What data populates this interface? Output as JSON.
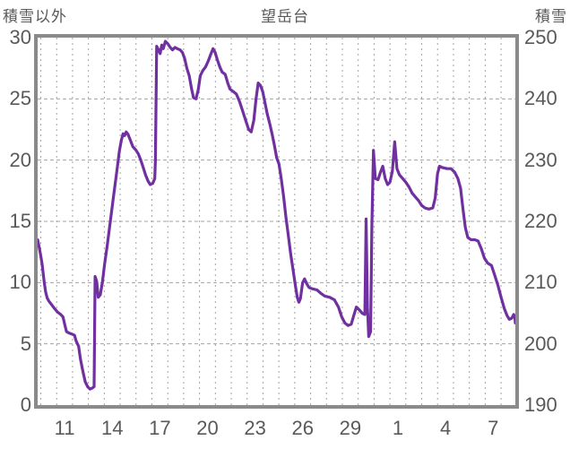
{
  "header": {
    "left_axis_caption": "積雪以外",
    "title": "望岳台",
    "right_axis_caption": "積雪"
  },
  "colors": {
    "line": "#7030a0",
    "border": "#8a8a8a",
    "grid": "#a3a3a3",
    "text": "#595959",
    "background": "#ffffff"
  },
  "chart_data": {
    "type": "line",
    "title": "望岳台",
    "left_axis": {
      "label": "積雪以外",
      "min": 0,
      "max": 30,
      "tick_labels": [
        "30",
        "25",
        "20",
        "15",
        "10",
        "5",
        "0"
      ],
      "tick_values": [
        30,
        25,
        20,
        15,
        10,
        5,
        0
      ]
    },
    "right_axis": {
      "label": "積雪",
      "min": 190,
      "max": 250,
      "tick_labels": [
        "250",
        "240",
        "230",
        "220",
        "210",
        "200",
        "190"
      ],
      "tick_values": [
        250,
        240,
        230,
        220,
        210,
        200,
        190
      ]
    },
    "x_axis": {
      "tick_labels": [
        "11",
        "14",
        "17",
        "20",
        "23",
        "26",
        "29",
        "1",
        "4",
        "7"
      ],
      "tick_day_index": [
        2.5,
        5.5,
        8.5,
        11.5,
        14.5,
        17.5,
        20.5,
        23.5,
        26.5,
        29.5
      ],
      "domain_day_index": [
        0.8,
        30.9
      ],
      "day_boundary_gridlines": [
        1,
        2,
        3,
        4,
        5,
        6,
        7,
        8,
        9,
        10,
        11,
        12,
        13,
        14,
        15,
        16,
        17,
        18,
        19,
        20,
        21,
        22,
        23,
        24,
        25,
        26,
        27,
        28,
        29,
        30
      ]
    },
    "grid": {
      "h_gridline_left_values": [
        25,
        20,
        15,
        10,
        5
      ],
      "dashed": true
    },
    "legend": "none",
    "series": [
      {
        "name": "積雪",
        "axis": "right",
        "unit": "cm",
        "color": "#7030a0",
        "points": [
          [
            0.8,
            217
          ],
          [
            0.88,
            216
          ],
          [
            0.95,
            215
          ],
          [
            1.02,
            214
          ],
          [
            1.08,
            213
          ],
          [
            1.15,
            211.5
          ],
          [
            1.22,
            210
          ],
          [
            1.3,
            208.5
          ],
          [
            1.4,
            207.5
          ],
          [
            1.5,
            207
          ],
          [
            1.65,
            206.5
          ],
          [
            1.85,
            205.8
          ],
          [
            2.05,
            205.2
          ],
          [
            2.25,
            204.8
          ],
          [
            2.4,
            204.4
          ],
          [
            2.52,
            203
          ],
          [
            2.62,
            202
          ],
          [
            2.75,
            201.8
          ],
          [
            2.95,
            201.6
          ],
          [
            3.12,
            201.4
          ],
          [
            3.22,
            200.5
          ],
          [
            3.38,
            199.6
          ],
          [
            3.5,
            197.5
          ],
          [
            3.65,
            195.5
          ],
          [
            3.8,
            193.8
          ],
          [
            3.95,
            193
          ],
          [
            4.1,
            192.6
          ],
          [
            4.25,
            192.8
          ],
          [
            4.36,
            193
          ],
          [
            4.42,
            211
          ],
          [
            4.52,
            210.2
          ],
          [
            4.62,
            207.6
          ],
          [
            4.75,
            208
          ],
          [
            4.88,
            210
          ],
          [
            5.02,
            213
          ],
          [
            5.18,
            216
          ],
          [
            5.38,
            220
          ],
          [
            5.58,
            224
          ],
          [
            5.78,
            228
          ],
          [
            5.95,
            231.5
          ],
          [
            6.08,
            233.3
          ],
          [
            6.18,
            234.3
          ],
          [
            6.28,
            234
          ],
          [
            6.38,
            234.6
          ],
          [
            6.5,
            234.2
          ],
          [
            6.65,
            233.2
          ],
          [
            6.8,
            232.2
          ],
          [
            7.0,
            231.6
          ],
          [
            7.15,
            231
          ],
          [
            7.3,
            230
          ],
          [
            7.45,
            228.8
          ],
          [
            7.6,
            227.6
          ],
          [
            7.75,
            226.6
          ],
          [
            7.9,
            226
          ],
          [
            8.05,
            226.2
          ],
          [
            8.18,
            227
          ],
          [
            8.22,
            230
          ],
          [
            8.3,
            248.6
          ],
          [
            8.42,
            248
          ],
          [
            8.52,
            247.4
          ],
          [
            8.62,
            248.8
          ],
          [
            8.72,
            248.2
          ],
          [
            8.85,
            249.4
          ],
          [
            9.0,
            249
          ],
          [
            9.15,
            248.4
          ],
          [
            9.3,
            248
          ],
          [
            9.45,
            248.4
          ],
          [
            9.6,
            248.2
          ],
          [
            9.78,
            248
          ],
          [
            9.92,
            247.6
          ],
          [
            10.06,
            246.6
          ],
          [
            10.2,
            245
          ],
          [
            10.35,
            243.8
          ],
          [
            10.5,
            241.6
          ],
          [
            10.62,
            240.2
          ],
          [
            10.78,
            240
          ],
          [
            10.92,
            241.5
          ],
          [
            11.05,
            243.8
          ],
          [
            11.2,
            244.6
          ],
          [
            11.38,
            245.2
          ],
          [
            11.55,
            246.2
          ],
          [
            11.7,
            247.2
          ],
          [
            11.85,
            248.2
          ],
          [
            11.98,
            247.6
          ],
          [
            12.12,
            246.4
          ],
          [
            12.28,
            245.2
          ],
          [
            12.42,
            244.4
          ],
          [
            12.62,
            244
          ],
          [
            12.78,
            242.6
          ],
          [
            12.92,
            241.6
          ],
          [
            13.12,
            241.2
          ],
          [
            13.32,
            240.8
          ],
          [
            13.52,
            239.6
          ],
          [
            13.72,
            238
          ],
          [
            13.92,
            236.4
          ],
          [
            14.1,
            235
          ],
          [
            14.26,
            234.6
          ],
          [
            14.42,
            236.5
          ],
          [
            14.56,
            240
          ],
          [
            14.7,
            242.6
          ],
          [
            14.84,
            242.2
          ],
          [
            14.98,
            241.2
          ],
          [
            15.12,
            239.4
          ],
          [
            15.26,
            237.6
          ],
          [
            15.42,
            236
          ],
          [
            15.56,
            234.4
          ],
          [
            15.72,
            232.4
          ],
          [
            15.86,
            230.4
          ],
          [
            16.0,
            229.4
          ],
          [
            16.15,
            227
          ],
          [
            16.3,
            224
          ],
          [
            16.45,
            220.6
          ],
          [
            16.6,
            217.6
          ],
          [
            16.75,
            214.6
          ],
          [
            16.9,
            212
          ],
          [
            17.05,
            209.4
          ],
          [
            17.16,
            207.6
          ],
          [
            17.26,
            206.8
          ],
          [
            17.36,
            207.4
          ],
          [
            17.5,
            210
          ],
          [
            17.62,
            210.6
          ],
          [
            17.76,
            209.8
          ],
          [
            17.9,
            209.2
          ],
          [
            18.1,
            209
          ],
          [
            18.4,
            208.8
          ],
          [
            18.66,
            208.2
          ],
          [
            18.9,
            207.8
          ],
          [
            19.2,
            207.6
          ],
          [
            19.5,
            207.2
          ],
          [
            19.76,
            206
          ],
          [
            19.96,
            204.4
          ],
          [
            20.16,
            203.4
          ],
          [
            20.36,
            203
          ],
          [
            20.56,
            203.2
          ],
          [
            20.72,
            204.6
          ],
          [
            20.88,
            206
          ],
          [
            21.05,
            205.6
          ],
          [
            21.25,
            205
          ],
          [
            21.42,
            204.8
          ],
          [
            21.5,
            220.4
          ],
          [
            21.58,
            206
          ],
          [
            21.66,
            201.2
          ],
          [
            21.78,
            202
          ],
          [
            21.86,
            219
          ],
          [
            21.96,
            231.6
          ],
          [
            22.08,
            227
          ],
          [
            22.25,
            226.8
          ],
          [
            22.4,
            228
          ],
          [
            22.55,
            229
          ],
          [
            22.7,
            227
          ],
          [
            22.85,
            226
          ],
          [
            23.0,
            226.4
          ],
          [
            23.15,
            228.2
          ],
          [
            23.3,
            233
          ],
          [
            23.44,
            228.6
          ],
          [
            23.6,
            227.6
          ],
          [
            23.8,
            227
          ],
          [
            24.0,
            226.4
          ],
          [
            24.2,
            225.6
          ],
          [
            24.4,
            224.6
          ],
          [
            24.6,
            224
          ],
          [
            24.8,
            223.4
          ],
          [
            25.0,
            222.6
          ],
          [
            25.2,
            222.2
          ],
          [
            25.45,
            222
          ],
          [
            25.7,
            222.2
          ],
          [
            25.85,
            223.8
          ],
          [
            26.0,
            227.8
          ],
          [
            26.12,
            229
          ],
          [
            26.3,
            228.8
          ],
          [
            26.6,
            228.6
          ],
          [
            26.85,
            228.6
          ],
          [
            27.08,
            228
          ],
          [
            27.28,
            227
          ],
          [
            27.45,
            225.4
          ],
          [
            27.6,
            222
          ],
          [
            27.75,
            219
          ],
          [
            27.9,
            217.4
          ],
          [
            28.1,
            217
          ],
          [
            28.35,
            217
          ],
          [
            28.55,
            216.8
          ],
          [
            28.75,
            215.6
          ],
          [
            28.95,
            214
          ],
          [
            29.15,
            213.2
          ],
          [
            29.4,
            212.8
          ],
          [
            29.6,
            211.2
          ],
          [
            29.8,
            209.6
          ],
          [
            30.0,
            207.6
          ],
          [
            30.2,
            205.8
          ],
          [
            30.38,
            204.6
          ],
          [
            30.52,
            204
          ],
          [
            30.68,
            204.2
          ],
          [
            30.8,
            204.8
          ],
          [
            30.88,
            204.2
          ],
          [
            30.9,
            203.4
          ]
        ]
      }
    ]
  }
}
